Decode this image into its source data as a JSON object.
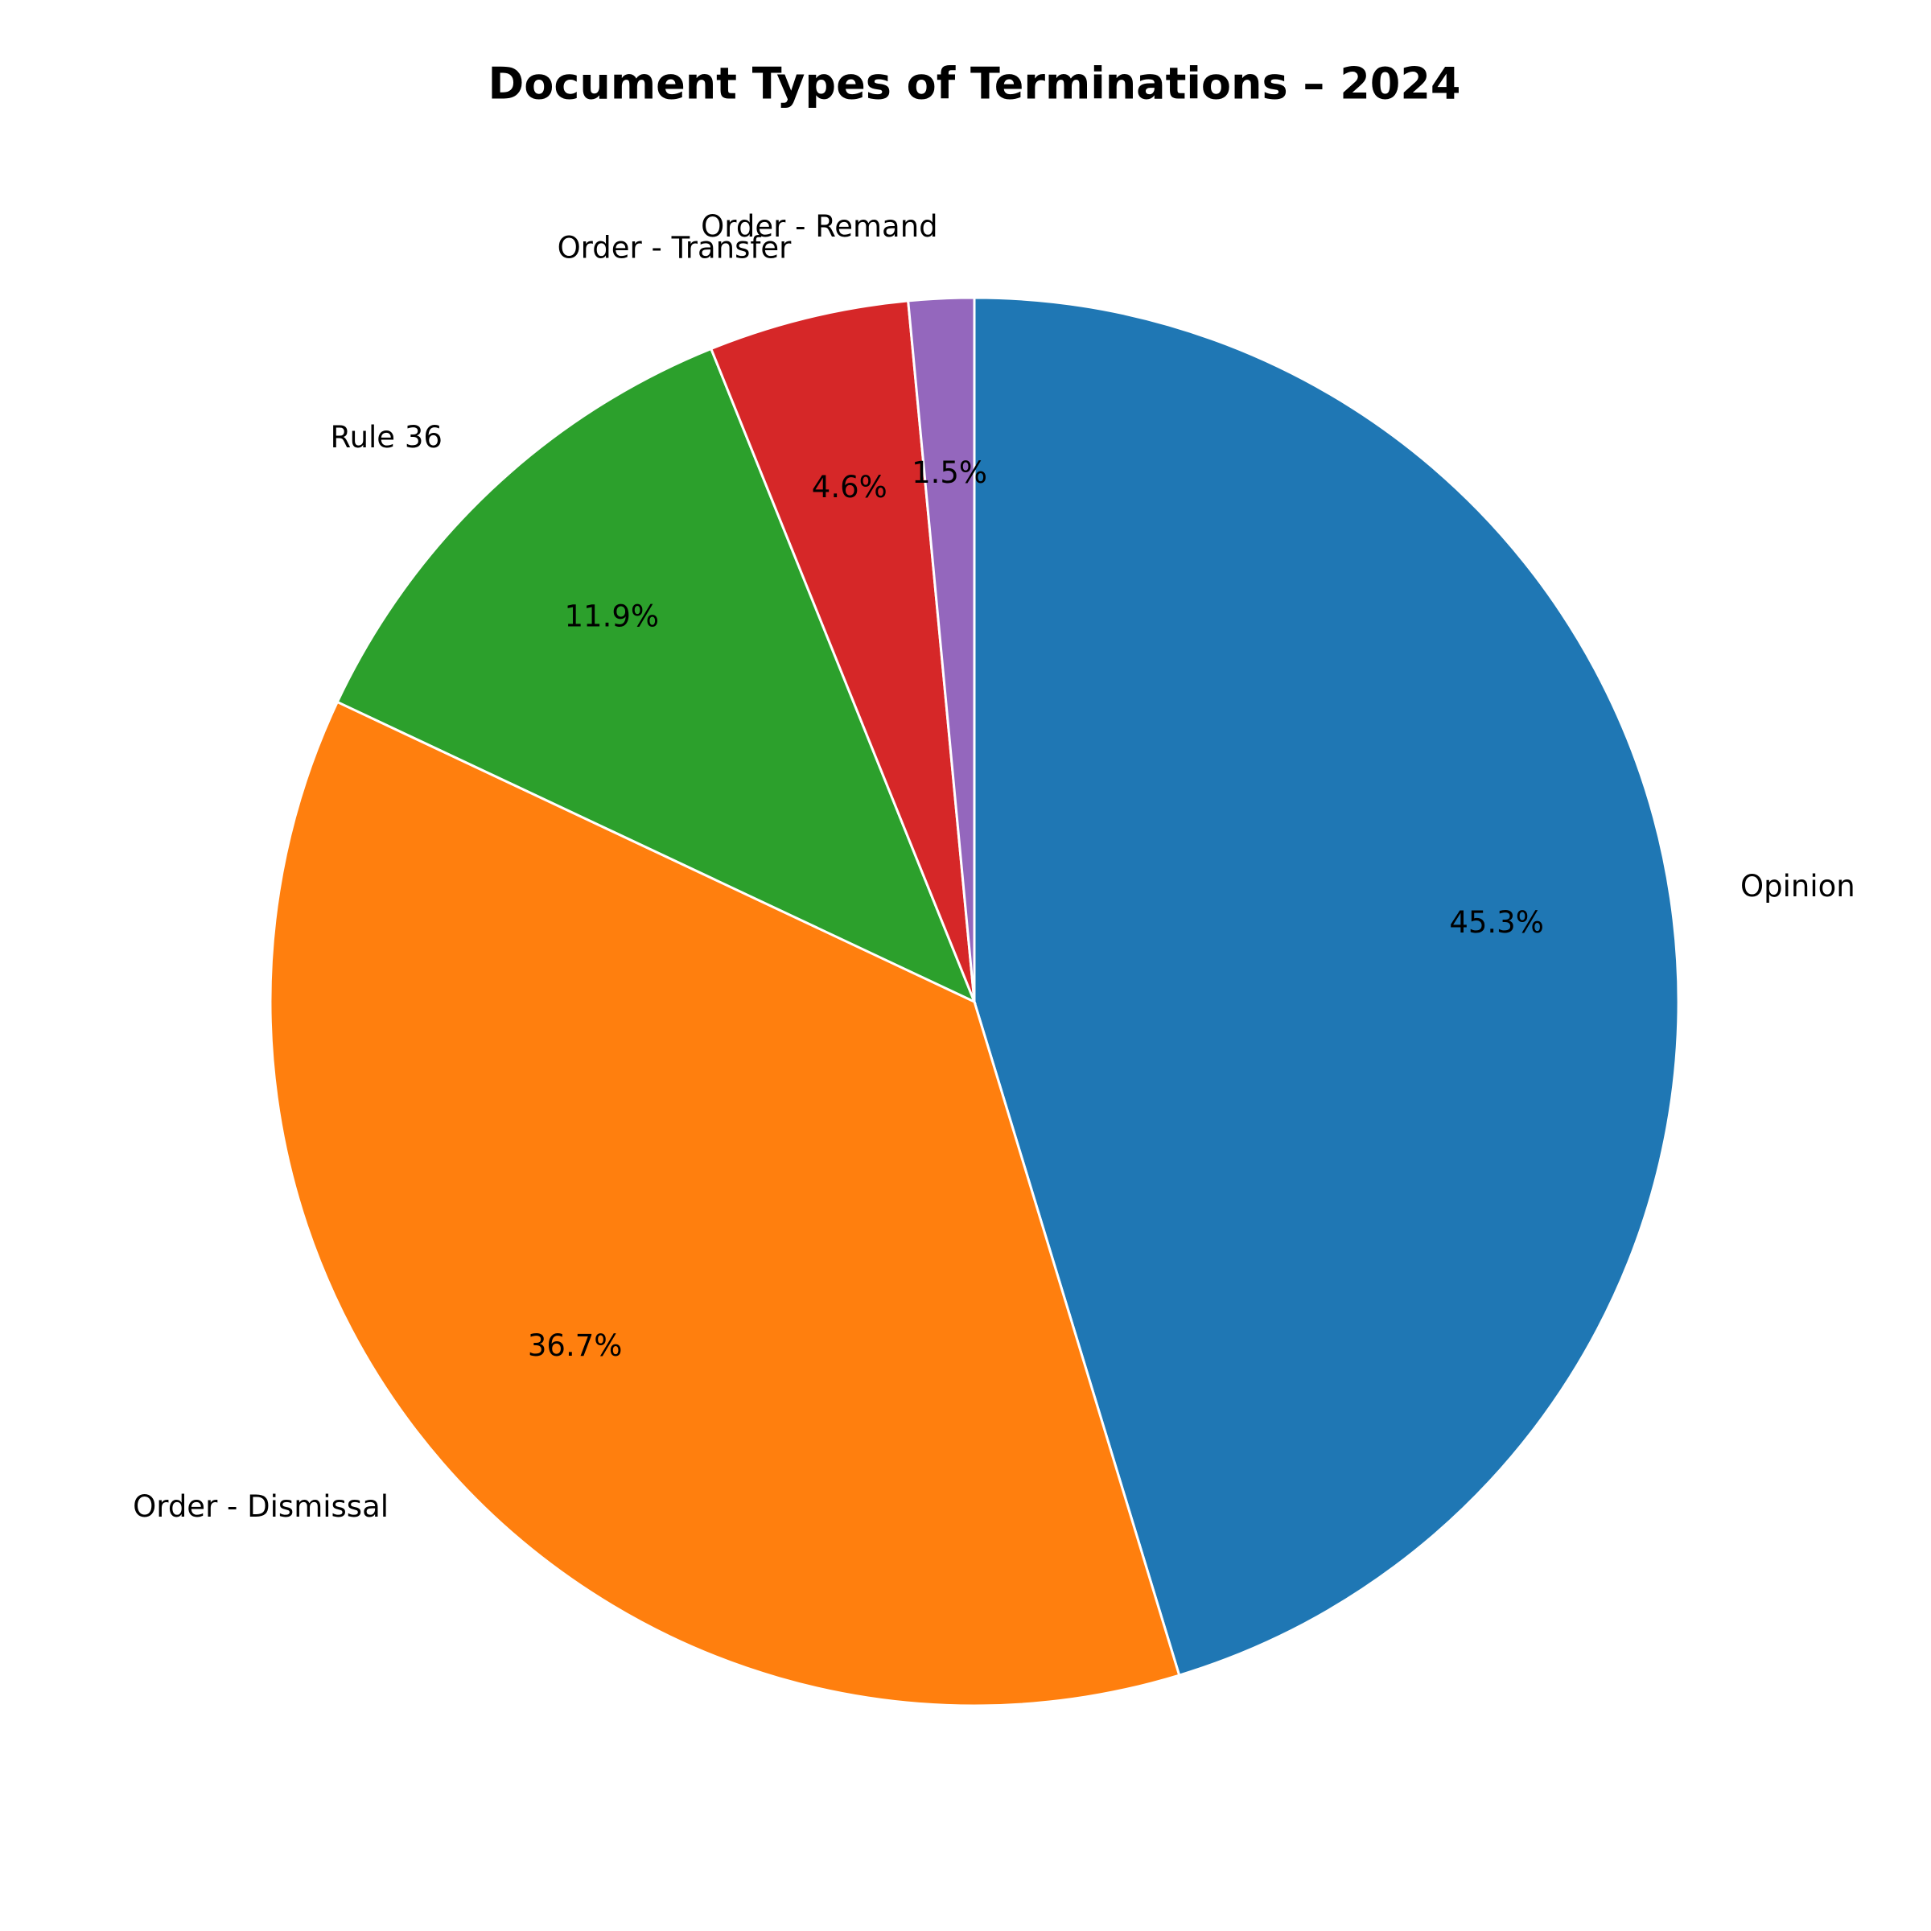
{
  "chart_data": {
    "type": "pie",
    "title": "Document Types of Terminations – 2024",
    "categories": [
      "Opinion",
      "Order - Dismissal",
      "Rule 36",
      "Order - Transfer",
      "Order - Remand"
    ],
    "values": [
      45.3,
      36.7,
      11.9,
      4.6,
      1.5
    ],
    "value_labels": [
      "45.3%",
      "36.7%",
      "11.9%",
      "4.6%",
      "1.5%"
    ],
    "colors": [
      "#1f77b4",
      "#ff7f0e",
      "#2ca02c",
      "#d62728",
      "#9467bd"
    ]
  }
}
